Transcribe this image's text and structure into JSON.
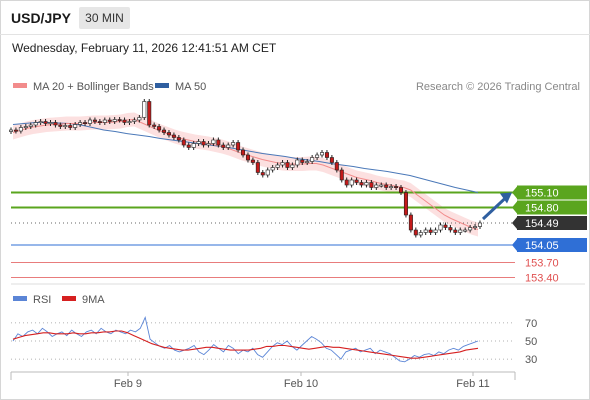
{
  "header": {
    "symbol": "USD/JPY",
    "timeframe": "30 MIN"
  },
  "timestamp": "Wednesday, February 11, 2026 12:41:51 AM CET",
  "legend": {
    "ma20_label": "MA 20 + Bollinger Bands",
    "ma50_label": "MA 50",
    "credit": "Research © 2026 Trading Central",
    "rsi_label": "RSI",
    "rsi9_label": "9MA"
  },
  "colors": {
    "ma20": "#f28c8c",
    "band_fill": "#fbdada",
    "ma50": "#4a78b8",
    "resistance": "#5aa51e",
    "current": "#333333",
    "pivot": "#2f6fd6",
    "support": "#e05050",
    "rsi": "#5b85d6",
    "rsi9": "#d62020",
    "bull": "#ffffff",
    "bear": "#c41a1a"
  },
  "chart_data": [
    {
      "type": "candlestick",
      "x_labels": [
        "Feb 9",
        "Feb 10",
        "Feb 11"
      ],
      "ylim": [
        153.35,
        156.95
      ],
      "price_levels": [
        {
          "value": 155.1,
          "label": "155.10",
          "kind": "resistance"
        },
        {
          "value": 154.8,
          "label": "154.80",
          "kind": "resistance"
        },
        {
          "value": 154.49,
          "label": "154.49",
          "kind": "current"
        },
        {
          "value": 154.05,
          "label": "154.05",
          "kind": "pivot"
        },
        {
          "value": 153.7,
          "label": "153.70",
          "kind": "support"
        },
        {
          "value": 153.4,
          "label": "153.40",
          "kind": "support"
        }
      ],
      "close_series": [
        156.35,
        156.33,
        156.4,
        156.42,
        156.45,
        156.5,
        156.52,
        156.48,
        156.5,
        156.45,
        156.42,
        156.44,
        156.4,
        156.46,
        156.5,
        156.48,
        156.55,
        156.52,
        156.5,
        156.55,
        156.52,
        156.56,
        156.55,
        156.5,
        156.52,
        156.55,
        156.6,
        156.92,
        156.45,
        156.42,
        156.35,
        156.3,
        156.25,
        156.2,
        156.15,
        156.05,
        156.0,
        156.08,
        156.12,
        156.05,
        156.08,
        156.15,
        156.05,
        156.0,
        156.05,
        156.1,
        155.95,
        155.85,
        155.75,
        155.7,
        155.5,
        155.45,
        155.55,
        155.6,
        155.65,
        155.7,
        155.6,
        155.65,
        155.75,
        155.7,
        155.72,
        155.8,
        155.85,
        155.9,
        155.8,
        155.7,
        155.55,
        155.35,
        155.25,
        155.35,
        155.3,
        155.25,
        155.3,
        155.2,
        155.25,
        155.25,
        155.2,
        155.22,
        155.2,
        155.1,
        154.65,
        154.35,
        154.25,
        154.3,
        154.35,
        154.3,
        154.35,
        154.45,
        154.4,
        154.35,
        154.3,
        154.35,
        154.35,
        154.4,
        154.42,
        154.49
      ],
      "ma20": [
        156.3,
        156.34,
        156.38,
        156.41,
        156.43,
        156.45,
        156.46,
        156.47,
        156.48,
        156.48,
        156.48,
        156.49,
        156.5,
        156.5,
        156.5,
        156.51,
        156.52,
        156.55,
        156.56,
        156.5,
        156.44,
        156.38,
        156.32,
        156.27,
        156.22,
        156.18,
        156.15,
        156.12,
        156.1,
        156.08,
        156.05,
        156.02,
        155.98,
        155.93,
        155.88,
        155.84,
        155.8,
        155.76,
        155.73,
        155.7,
        155.68,
        155.67,
        155.67,
        155.67,
        155.68,
        155.68,
        155.65,
        155.6,
        155.55,
        155.5,
        155.45,
        155.4,
        155.37,
        155.34,
        155.3,
        155.27,
        155.25,
        155.22,
        155.2,
        155.15,
        155.05,
        154.95,
        154.85,
        154.75,
        154.65,
        154.58,
        154.52,
        154.46,
        154.4,
        154.36
      ],
      "ma50": [
        156.46,
        156.48,
        156.5,
        156.5,
        156.49,
        156.48,
        156.45,
        156.4,
        156.35,
        156.32,
        156.28,
        156.25,
        156.22,
        156.18,
        156.15,
        156.12,
        156.09,
        156.06,
        156.03,
        156.0,
        155.96,
        155.92,
        155.88,
        155.85,
        155.82,
        155.78,
        155.75,
        155.72,
        155.68,
        155.65,
        155.62,
        155.58,
        155.55,
        155.52,
        155.48,
        155.44,
        155.38,
        155.32,
        155.26,
        155.2,
        155.15,
        155.1
      ]
    },
    {
      "type": "line",
      "title": "RSI",
      "ylim": [
        18,
        82
      ],
      "y_ticks": [
        70,
        50,
        30
      ],
      "series": [
        {
          "name": "RSI",
          "values": [
            50,
            58,
            55,
            60,
            62,
            58,
            64,
            60,
            55,
            58,
            60,
            56,
            62,
            58,
            55,
            60,
            62,
            58,
            64,
            60,
            58,
            62,
            60,
            58,
            62,
            60,
            64,
            76,
            52,
            48,
            44,
            42,
            45,
            40,
            38,
            40,
            42,
            45,
            38,
            35,
            40,
            46,
            42,
            38,
            45,
            42,
            36,
            40,
            38,
            42,
            35,
            32,
            38,
            44,
            48,
            46,
            50,
            44,
            40,
            45,
            50,
            55,
            52,
            48,
            42,
            40,
            35,
            30,
            38,
            40,
            42,
            38,
            40,
            42,
            36,
            40,
            38,
            36,
            32,
            28,
            27,
            30,
            34,
            32,
            35,
            36,
            34,
            38,
            36,
            40,
            42,
            40,
            44,
            46,
            48,
            50
          ]
        },
        {
          "name": "9MA",
          "values": [
            52,
            54,
            56,
            57,
            58,
            59,
            59,
            58,
            58,
            58,
            59,
            58,
            58,
            59,
            59,
            60,
            60,
            61,
            61,
            59,
            56,
            53,
            50,
            47,
            45,
            43,
            42,
            41,
            40,
            40,
            41,
            42,
            43,
            43,
            42,
            41,
            40,
            40,
            40,
            40,
            41,
            42,
            44,
            44,
            45,
            45,
            44,
            43,
            42,
            41,
            42,
            43,
            44,
            43,
            43,
            42,
            41,
            40,
            39,
            38,
            37,
            36,
            35,
            34,
            33,
            32,
            31,
            31,
            32,
            33,
            34,
            35,
            36,
            37,
            38,
            40,
            41,
            42
          ]
        }
      ]
    }
  ]
}
